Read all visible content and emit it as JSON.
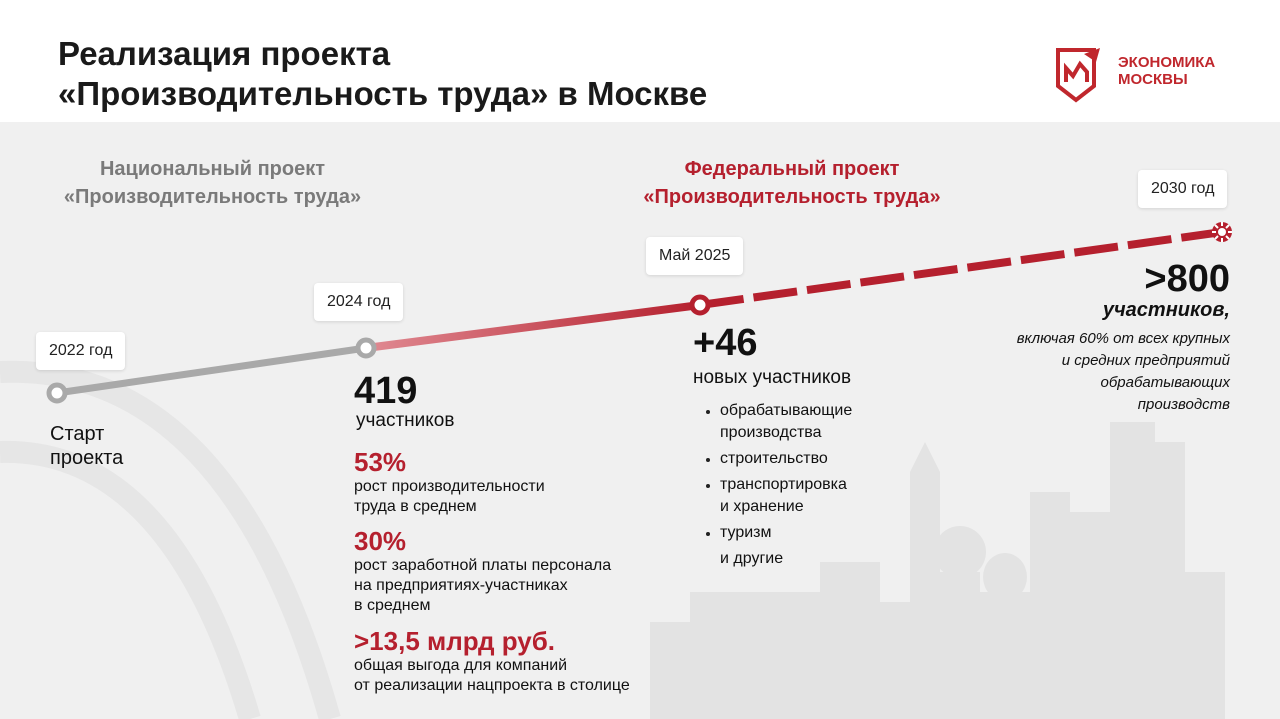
{
  "header": {
    "title_line1": "Реализация проекта",
    "title_line2": "«Производительность труда» в Москве",
    "logo_line1": "ЭКОНОМИКА",
    "logo_line2": "МОСКВЫ"
  },
  "projects": {
    "national_line1": "Национальный проект",
    "national_line2": "«Производительность труда»",
    "federal_line1": "Федеральный проект",
    "federal_line2": "«Производительность труда»"
  },
  "milestones": {
    "m2022": {
      "tag": "2022 год",
      "text_line1": "Старт",
      "text_line2": "проекта"
    },
    "m2024": {
      "tag": "2024 год",
      "value": "419",
      "unit": "участников",
      "stats": [
        {
          "value": "53%",
          "line1": "рост производительности",
          "line2": "труда в среднем",
          "line3": ""
        },
        {
          "value": "30%",
          "line1": "рост заработной платы персонала",
          "line2": "на предприятиях-участниках",
          "line3": "в среднем"
        },
        {
          "value": ">13,5 млрд руб.",
          "line1": "общая выгода для компаний",
          "line2": "от реализации нацпроекта в столице",
          "line3": ""
        }
      ]
    },
    "m2025": {
      "tag": "Май 2025",
      "value": "+46",
      "unit": "новых участников",
      "items": [
        {
          "line1": "обрабатывающие",
          "line2": "производства"
        },
        {
          "line1": "строительство",
          "line2": ""
        },
        {
          "line1": "транспортировка",
          "line2": "и хранение"
        },
        {
          "line1": "туризм",
          "line2": ""
        },
        {
          "line1": "и другие",
          "line2": ""
        }
      ]
    },
    "m2030": {
      "tag": "2030 год",
      "value": ">800",
      "unit": "участников,",
      "desc_line1": "включая 60% от всех крупных",
      "desc_line2": "и средних предприятий",
      "desc_line3": "обрабатывающих",
      "desc_line4": "производств"
    }
  },
  "colors": {
    "accent": "#b5202e",
    "gray_line": "#a9a9a9",
    "background": "#f0f0f0"
  }
}
